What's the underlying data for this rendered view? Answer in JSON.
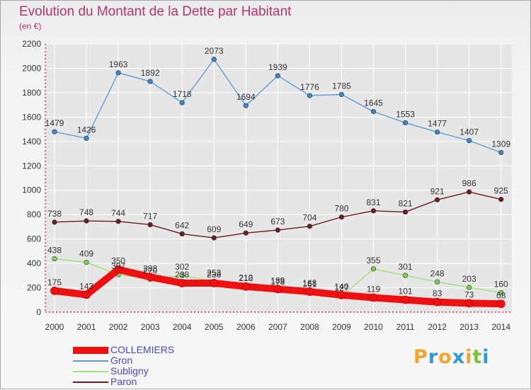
{
  "title": "Evolution du Montant de la Dette par Habitant",
  "subtitle": "(en €)",
  "logo": "Proxiti",
  "colors": {
    "title": "#b4376a",
    "axis": "#d8102a",
    "grid": "#ffffff",
    "legend_text": "#4848d8"
  },
  "chart_data": {
    "type": "line",
    "title": "Evolution du Montant de la Dette par Habitant",
    "subtitle": "(en €)",
    "xlabel": "",
    "ylabel": "",
    "x": [
      2000,
      2001,
      2002,
      2003,
      2004,
      2005,
      2006,
      2007,
      2008,
      2009,
      2010,
      2011,
      2012,
      2013,
      2014
    ],
    "ylim": [
      0,
      2200
    ],
    "yticks": [
      0,
      200,
      400,
      600,
      800,
      1000,
      1200,
      1400,
      1600,
      1800,
      2000,
      2200
    ],
    "grid": true,
    "legend_position": "bottom-left",
    "series": [
      {
        "name": "COLLEMIERS",
        "color": "#ee1111",
        "marker_color": "#ee1111",
        "values": [
          175,
          143,
          350,
          288,
          238,
          238,
          210,
          189,
          168,
          140,
          119,
          101,
          83,
          73,
          68
        ]
      },
      {
        "name": "Gron",
        "color": "#5d9dd4",
        "marker_color": "#3f87c8",
        "values": [
          1479,
          1426,
          1963,
          1892,
          1718,
          2073,
          1694,
          1939,
          1776,
          1785,
          1645,
          1553,
          1477,
          1407,
          1309
        ]
      },
      {
        "name": "Subligny",
        "color": "#9ee07a",
        "marker_color": "#7cd04e",
        "values": [
          438,
          409,
          307,
          270,
          302,
          253,
          212,
          178,
          161,
          127,
          355,
          301,
          248,
          203,
          160
        ]
      },
      {
        "name": "Paron",
        "color": "#6b1d24",
        "marker_color": "#6b1d24",
        "values": [
          738,
          748,
          744,
          717,
          642,
          609,
          649,
          673,
          704,
          780,
          831,
          821,
          921,
          986,
          925
        ]
      }
    ]
  }
}
